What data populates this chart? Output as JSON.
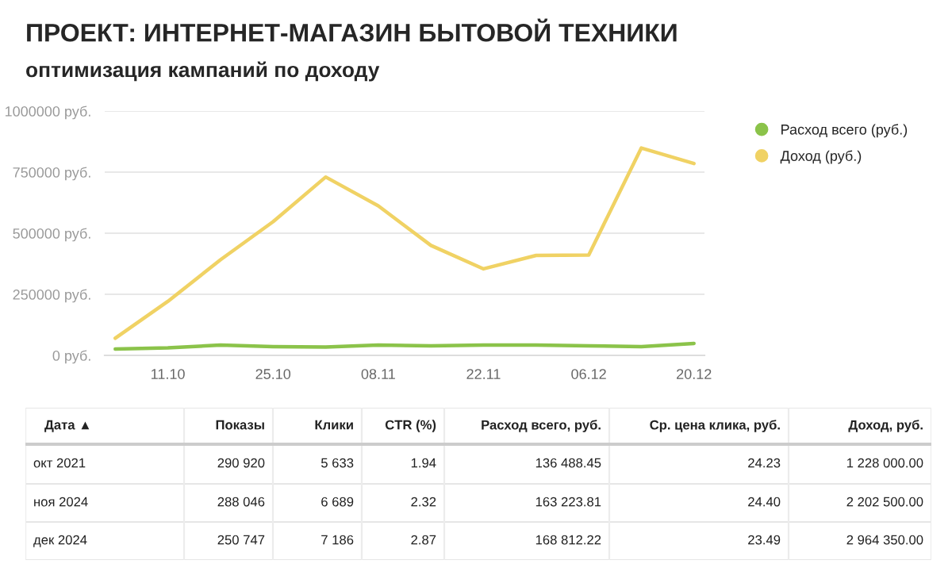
{
  "chart_data": [
    {
      "type": "line",
      "title": "ПРОЕКТ: ИНТЕРНЕТ-МАГАЗИН БЫТОВОЙ ТЕХНИКИ",
      "subtitle": "оптимизация кампаний по доходу",
      "categories": [
        null,
        "11.10",
        null,
        "25.10",
        null,
        "08.11",
        null,
        "22.11",
        null,
        "06.12",
        null,
        "20.12"
      ],
      "series": [
        {
          "name": "Расход всего (руб.)",
          "color": "#8bc34a",
          "values": [
            26000,
            31000,
            42000,
            36000,
            34000,
            42000,
            39000,
            42000,
            42000,
            39000,
            36000,
            49000
          ]
        },
        {
          "name": "Доход (руб.)",
          "color": "#f0d264",
          "values": [
            70000,
            221000,
            391000,
            547000,
            730000,
            612000,
            450000,
            354000,
            409000,
            411000,
            849000,
            785000
          ]
        }
      ],
      "ylim": [
        0,
        1000000
      ],
      "yticks": [
        {
          "value": 0,
          "label": "0 руб."
        },
        {
          "value": 250000,
          "label": "250000 руб."
        },
        {
          "value": 500000,
          "label": "500000 руб."
        },
        {
          "value": 750000,
          "label": "750000 руб."
        },
        {
          "value": 1000000,
          "label": "1000000 руб."
        }
      ],
      "grid": "y",
      "legend": "top right",
      "marker": "none",
      "line_style": "solid"
    },
    {
      "type": "other",
      "annotations": [
        "Дата ▲",
        "Показы",
        "Клики",
        "CTR (%)",
        "Расход всего, руб.",
        "Ср. цена клика, руб.",
        "Доход, руб.",
        "окт 2021",
        "290 920",
        "5 633",
        "1.94",
        "136 488.45",
        "24.23",
        "1 228 000.00",
        "ноя 2024",
        "288 046",
        "6 689",
        "2.32",
        "163 223.81",
        "24.40",
        "2 202 500.00",
        "дек 2024",
        "250 747",
        "7 186",
        "2.87",
        "168 812.22",
        "23.49",
        "2 964 350.00"
      ]
    }
  ]
}
